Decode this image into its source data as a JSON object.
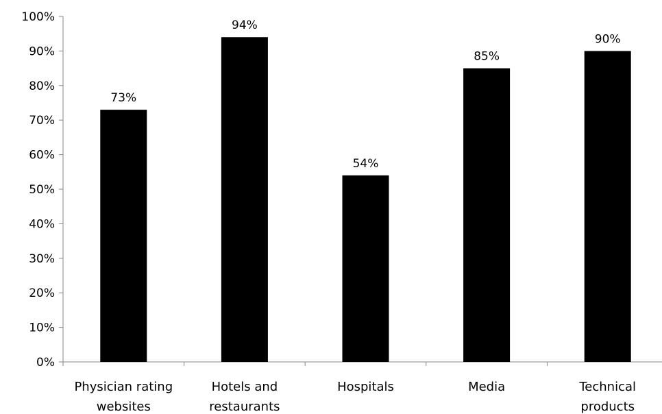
{
  "chart_data": {
    "type": "bar",
    "categories": [
      [
        "Physician rating",
        "websites"
      ],
      [
        "Hotels and",
        "restaurants"
      ],
      [
        "Hospitals"
      ],
      [
        "Media"
      ],
      [
        "Technical",
        "products"
      ]
    ],
    "values": [
      73,
      94,
      54,
      85,
      90
    ],
    "data_labels": [
      "73%",
      "94%",
      "54%",
      "85%",
      "90%"
    ],
    "y_ticks": [
      "0%",
      "10%",
      "20%",
      "30%",
      "40%",
      "50%",
      "60%",
      "70%",
      "80%",
      "90%",
      "100%"
    ],
    "ylim": [
      0,
      100
    ],
    "grid": false,
    "legend": "none",
    "colors": {
      "bar": "#000000",
      "axis": "#868686",
      "text": "#000000"
    }
  }
}
